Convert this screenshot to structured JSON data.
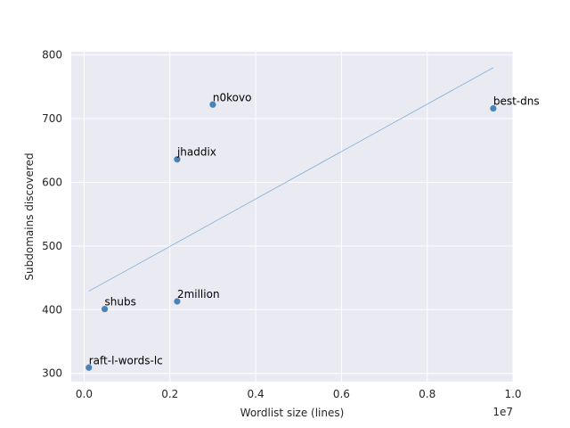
{
  "chart_data": {
    "type": "scatter",
    "title": "",
    "xlabel": "Wordlist size (lines)",
    "ylabel": "Subdomains discovered",
    "x_offset_label": "1e7",
    "xlim": [
      -300000,
      10000000
    ],
    "ylim": [
      287,
      805
    ],
    "x_ticks": [
      0,
      2000000,
      4000000,
      6000000,
      8000000,
      10000000
    ],
    "x_tick_labels": [
      "0.0",
      "0.2",
      "0.4",
      "0.6",
      "0.8",
      "1.0"
    ],
    "y_ticks": [
      300,
      400,
      500,
      600,
      700,
      800
    ],
    "y_tick_labels": [
      "300",
      "400",
      "500",
      "600",
      "700",
      "800"
    ],
    "grid": true,
    "points": [
      {
        "label": "raft-l-words-lc",
        "x": 110000,
        "y": 309
      },
      {
        "label": "shubs",
        "x": 480000,
        "y": 401
      },
      {
        "label": "2million",
        "x": 2170000,
        "y": 413
      },
      {
        "label": "jhaddix",
        "x": 2170000,
        "y": 636
      },
      {
        "label": "n0kovo",
        "x": 3000000,
        "y": 722
      },
      {
        "label": "best-dns",
        "x": 9540000,
        "y": 716
      }
    ],
    "trendline": {
      "x": [
        110000,
        9540000
      ],
      "y": [
        429,
        780
      ]
    },
    "colors": {
      "background": "#eaeaf2",
      "grid": "#ffffff",
      "point": "#4c83b6",
      "trendline": "#7eb0d9"
    }
  }
}
